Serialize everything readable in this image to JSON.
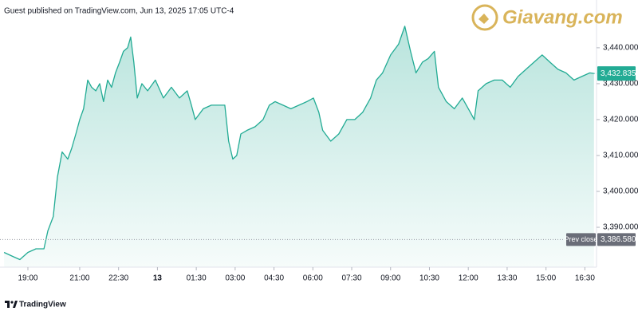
{
  "chart_data": {
    "type": "area",
    "header": "Guest published on TradingView.com, Jun 13, 2025 17:05 UTC-4",
    "watermark": "Giavang.com",
    "footer": "TradingView",
    "color": "#22ab94",
    "x": [
      0.08,
      0.38,
      0.69,
      1.0,
      1.31,
      1.62,
      1.77,
      1.98,
      2.14,
      2.32,
      2.54,
      2.69,
      2.85,
      3.0,
      3.15,
      3.31,
      3.46,
      3.62,
      3.77,
      3.92,
      4.08,
      4.23,
      4.38,
      4.54,
      4.69,
      4.85,
      4.97,
      5.09,
      5.22,
      5.4,
      5.62,
      5.92,
      6.23,
      6.54,
      6.85,
      7.15,
      7.31,
      7.46,
      7.77,
      8.08,
      8.38,
      8.6,
      8.75,
      8.91,
      9.06,
      9.22,
      9.46,
      9.77,
      10.08,
      10.32,
      10.54,
      10.85,
      11.15,
      11.46,
      11.77,
      12.02,
      12.23,
      12.38,
      12.69,
      13.0,
      13.31,
      13.62,
      13.92,
      14.23,
      14.45,
      14.69,
      15.0,
      15.31,
      15.55,
      15.77,
      15.98,
      16.23,
      16.45,
      16.69,
      16.85,
      17.15,
      17.46,
      17.77,
      18.08,
      18.23,
      18.38,
      18.69,
      19.0,
      19.31,
      19.62,
      19.92,
      20.23,
      20.54,
      20.85,
      21.15,
      21.46,
      21.77,
      22.08,
      22.38,
      22.69,
      22.85
    ],
    "values": [
      3383,
      3382,
      3381,
      3383,
      3384,
      3384,
      3389,
      3393,
      3404,
      3411,
      3409,
      3412,
      3416,
      3420,
      3423,
      3431,
      3429,
      3428,
      3430,
      3425,
      3431,
      3429,
      3433,
      3436,
      3439,
      3440,
      3443,
      3436,
      3426,
      3430,
      3428,
      3431,
      3426,
      3429,
      3426,
      3428,
      3424,
      3420,
      3423,
      3424,
      3424,
      3424,
      3414,
      3409,
      3410,
      3416,
      3417,
      3418,
      3420,
      3424,
      3425,
      3424,
      3423,
      3424,
      3425,
      3426,
      3422,
      3417,
      3414,
      3416,
      3420,
      3420,
      3422,
      3426,
      3431,
      3433,
      3438,
      3441,
      3446,
      3439,
      3433,
      3436,
      3437,
      3439,
      3429,
      3425,
      3423,
      3426,
      3422,
      3420,
      3428,
      3430,
      3431,
      3431,
      3429,
      3432,
      3434,
      3436,
      3438,
      3436,
      3434,
      3433,
      3431,
      3432,
      3433,
      3432.835
    ],
    "last_price": {
      "value": 3432.835,
      "label": "3,432.835"
    },
    "prev_close": {
      "name": "Prev close",
      "value": 3386.58,
      "label": "3,386.580"
    },
    "xlim": [
      0,
      22.95
    ],
    "xticks": [
      {
        "value": 1,
        "label": "19:00"
      },
      {
        "value": 3,
        "label": "21:00"
      },
      {
        "value": 4.5,
        "label": "22:30"
      },
      {
        "value": 6,
        "label": "13"
      },
      {
        "value": 7.5,
        "label": "01:30"
      },
      {
        "value": 9,
        "label": "03:00"
      },
      {
        "value": 10.5,
        "label": "04:30"
      },
      {
        "value": 12,
        "label": "06:00"
      },
      {
        "value": 13.5,
        "label": "07:30"
      },
      {
        "value": 15,
        "label": "09:00"
      },
      {
        "value": 16.5,
        "label": "10:30"
      },
      {
        "value": 18,
        "label": "12:00"
      },
      {
        "value": 19.5,
        "label": "13:30"
      },
      {
        "value": 21,
        "label": "15:00"
      },
      {
        "value": 22.5,
        "label": "16:30"
      }
    ],
    "ylim": [
      3378.9,
      3453.3
    ],
    "yticks": [
      {
        "value": 3390,
        "label": "3,390.000"
      },
      {
        "value": 3400,
        "label": "3,400.000"
      },
      {
        "value": 3410,
        "label": "3,410.000"
      },
      {
        "value": 3420,
        "label": "3,420.000"
      },
      {
        "value": 3430,
        "label": "3,430.000"
      },
      {
        "value": 3440,
        "label": "3,440.000"
      }
    ]
  }
}
